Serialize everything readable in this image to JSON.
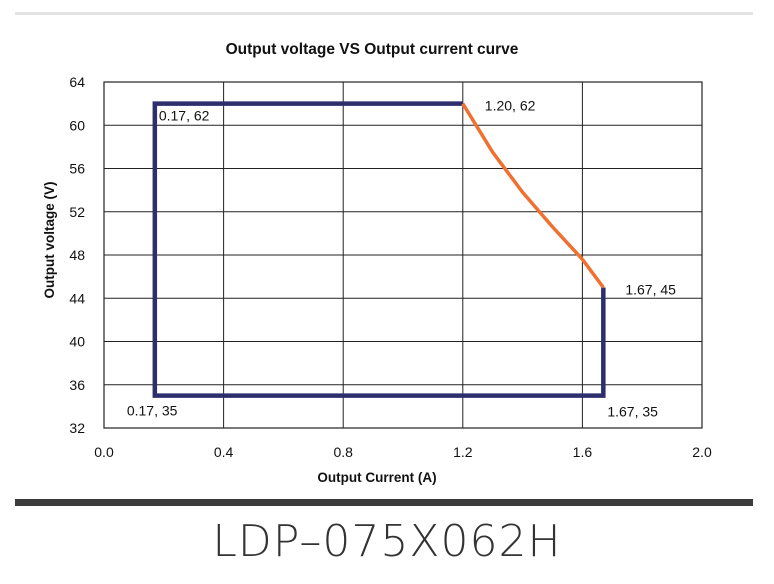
{
  "chart_data": {
    "type": "line",
    "title": "Output voltage VS Output current curve",
    "xlabel": "Output Current (A)",
    "ylabel": "Output voltage (V)",
    "xlim": [
      0.0,
      2.0
    ],
    "ylim": [
      32,
      64
    ],
    "x_ticks": [
      "0.0",
      "0.4",
      "0.8",
      "1.2",
      "1.6",
      "2.0"
    ],
    "y_ticks": [
      "32",
      "36",
      "40",
      "44",
      "48",
      "52",
      "56",
      "60",
      "64"
    ],
    "grid": true,
    "series": [
      {
        "color": "#2e2e6e",
        "points": [
          [
            1.2,
            62
          ],
          [
            0.17,
            62
          ],
          [
            0.17,
            35
          ],
          [
            1.67,
            35
          ],
          [
            1.67,
            45
          ]
        ]
      },
      {
        "color": "#f07030",
        "points": [
          [
            1.2,
            62
          ],
          [
            1.3,
            57.5
          ],
          [
            1.4,
            53.8
          ],
          [
            1.5,
            50.6
          ],
          [
            1.6,
            47.6
          ],
          [
            1.67,
            45
          ]
        ]
      }
    ],
    "annotations": [
      {
        "text": "0.17, 62",
        "x": 0.17,
        "y": 62,
        "anchor": "inside-below-right"
      },
      {
        "text": "1.20, 62",
        "x": 1.2,
        "y": 62,
        "anchor": "right"
      },
      {
        "text": "1.67, 45",
        "x": 1.67,
        "y": 45,
        "anchor": "right"
      },
      {
        "text": "0.17, 35",
        "x": 0.17,
        "y": 35,
        "anchor": "below-left"
      },
      {
        "text": "1.67, 35",
        "x": 1.67,
        "y": 35,
        "anchor": "below-right"
      }
    ]
  },
  "footer": {
    "model": "LDP–075X062H"
  }
}
